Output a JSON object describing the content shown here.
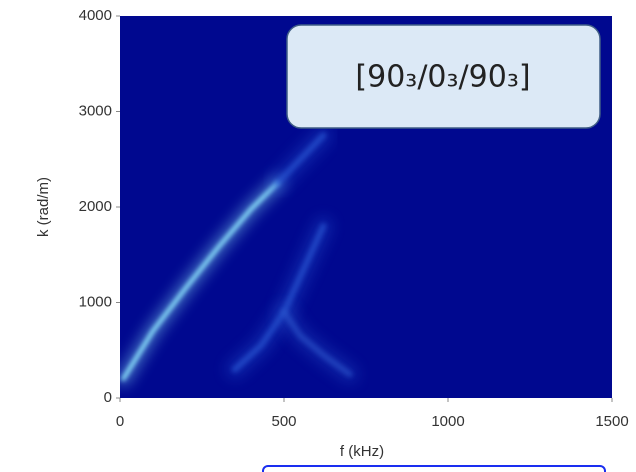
{
  "chart_data": {
    "type": "heatmap",
    "annotation": "[90₃/0₃/90₃]",
    "x_label": "f (kHz)",
    "y_label": "k (rad/m)",
    "xlim": [
      0,
      1500
    ],
    "xticks": [
      0,
      500,
      1000,
      1500
    ],
    "ylim": [
      0,
      4000
    ],
    "yticks": [
      0,
      1000,
      2000,
      3000,
      4000
    ],
    "series": [
      {
        "color": "#8fe8ff",
        "x": [
          10,
          100,
          200,
          300,
          400,
          480
        ],
        "values": [
          200,
          700,
          1150,
          1580,
          1980,
          2250
        ]
      },
      {
        "color": "#2c5cd8",
        "x": [
          480,
          550,
          620
        ],
        "values": [
          2250,
          2500,
          2750
        ]
      },
      {
        "color": "#2c5cd8",
        "x": [
          350,
          430,
          500,
          560,
          620
        ],
        "values": [
          300,
          550,
          900,
          1350,
          1800
        ]
      },
      {
        "color": "#2a55cc",
        "x": [
          500,
          550,
          620,
          700
        ],
        "values": [
          900,
          650,
          450,
          250
        ]
      }
    ]
  }
}
